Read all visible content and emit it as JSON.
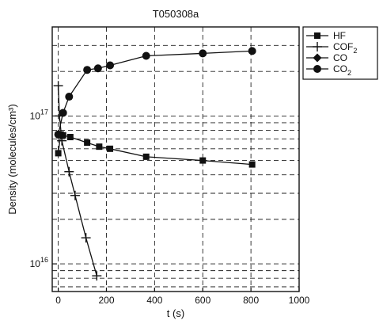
{
  "chart_data": {
    "type": "line",
    "title": "T050308a",
    "xlabel": "t (s)",
    "ylabel": "Density (molecules/cm³)",
    "y_scale": "log",
    "xlim": [
      -25,
      1000
    ],
    "ylim": [
      6500000000000000.0,
      4e+17
    ],
    "x_ticks": [
      0,
      200,
      400,
      600,
      800,
      1000
    ],
    "x_tick_labels": [
      "0",
      "200",
      "400",
      "600",
      "800",
      "1000"
    ],
    "y_ticks": [
      1e+16,
      1e+17
    ],
    "y_tick_labels": [
      {
        "base": "10",
        "exp": "16"
      },
      {
        "base": "10",
        "exp": "17"
      }
    ],
    "grid": true,
    "legend_position": "outside-top-right",
    "series": [
      {
        "name": "HF",
        "marker": "square",
        "x": [
          0,
          10,
          20,
          50,
          120,
          170,
          215,
          365,
          600,
          805
        ],
        "y": [
          5.6e+16,
          7.5e+16,
          7.4e+16,
          7.2e+16,
          6.6e+16,
          6.2e+16,
          6e+16,
          5.3e+16,
          5e+16,
          4.7e+16
        ]
      },
      {
        "name": "COF",
        "name_sub": "2",
        "marker": "plus",
        "x": [
          0,
          5,
          15,
          45,
          70,
          115,
          160
        ],
        "y": [
          1.6e+17,
          1e+17,
          6.8e+16,
          4.2e+16,
          2.9e+16,
          1.5e+16,
          8300000000000000.0
        ]
      },
      {
        "name": "CO",
        "marker": "diamond",
        "x": [],
        "y": []
      },
      {
        "name": "CO",
        "name_sub": "2",
        "marker": "circle",
        "x": [
          0,
          20,
          45,
          120,
          165,
          215,
          365,
          600,
          805
        ],
        "y": [
          7.5e+16,
          1.05e+17,
          1.35e+17,
          2.05e+17,
          2.1e+17,
          2.2e+17,
          2.55e+17,
          2.65e+17,
          2.75e+17
        ]
      }
    ]
  }
}
